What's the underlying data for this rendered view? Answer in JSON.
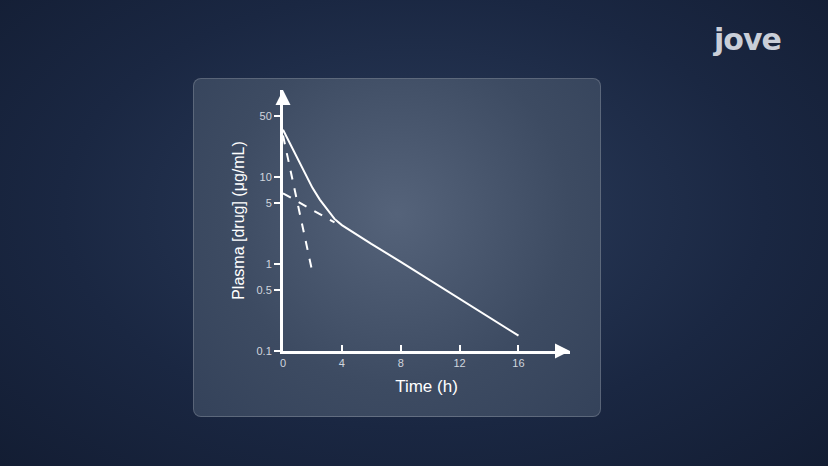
{
  "chart_data": {
    "type": "line",
    "xlabel": "Time (h)",
    "ylabel": "Plasma [drug] (μg/mL)",
    "annotations": [
      {
        "text": "jove"
      }
    ],
    "log": "y",
    "grid": false,
    "xlim": [
      0,
      19.5
    ],
    "xticks": [
      0,
      4,
      8,
      12,
      16
    ],
    "ylim": [
      0.1,
      100
    ],
    "yticks": [
      0.1,
      0.5,
      1,
      5,
      10,
      50
    ],
    "series": [
      {
        "x": [
          0,
          0.5,
          1,
          1.5,
          2,
          2.5,
          3,
          3.5,
          4,
          6,
          8,
          10,
          12,
          14,
          16
        ],
        "values": [
          35,
          24,
          16,
          11,
          7.5,
          5.5,
          4.2,
          3.3,
          2.8,
          1.7,
          1.06,
          0.65,
          0.4,
          0.245,
          0.15
        ],
        "color": "#ffffff",
        "line_style": "solid"
      },
      {
        "x": [
          0,
          2
        ],
        "values": [
          30,
          0.8
        ],
        "color": "#ffffff",
        "line_style": "dashed"
      },
      {
        "x": [
          0,
          3.5
        ],
        "values": [
          6.5,
          3.0
        ],
        "color": "#ffffff",
        "line_style": "dashed"
      }
    ]
  }
}
